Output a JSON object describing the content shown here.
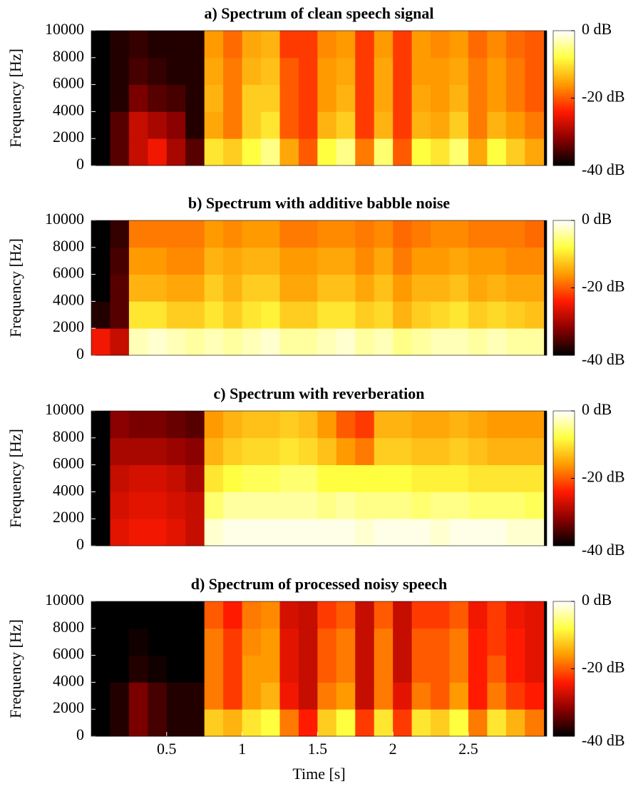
{
  "chart_data": [
    {
      "type": "heatmap",
      "title": "a) Spectrum of clean speech signal",
      "ylabel": "Frequency [Hz]",
      "x": [
        0,
        0.125,
        0.25,
        0.375,
        0.5,
        0.625,
        0.75,
        0.875,
        1,
        1.125,
        1.25,
        1.375,
        1.5,
        1.625,
        1.75,
        1.875,
        2,
        2.125,
        2.25,
        2.375,
        2.5,
        2.625,
        2.75,
        2.875,
        3
      ],
      "y": [
        0,
        2000,
        4000,
        6000,
        8000,
        10000
      ],
      "values": [
        [
          -40,
          -35,
          -28,
          -25,
          -30,
          -35,
          -10,
          -12,
          -8,
          -5,
          -15,
          -20,
          -8,
          -5,
          -18,
          -6,
          -20,
          -8,
          -10,
          -6,
          -15,
          -8,
          -12,
          -15
        ],
        [
          -40,
          -35,
          -28,
          -30,
          -32,
          -38,
          -15,
          -18,
          -12,
          -10,
          -20,
          -22,
          -14,
          -12,
          -22,
          -14,
          -22,
          -14,
          -15,
          -12,
          -18,
          -14,
          -16,
          -18
        ],
        [
          -40,
          -38,
          -33,
          -35,
          -36,
          -38,
          -14,
          -18,
          -12,
          -12,
          -20,
          -22,
          -16,
          -14,
          -22,
          -15,
          -22,
          -15,
          -16,
          -14,
          -18,
          -16,
          -18,
          -20
        ],
        [
          -40,
          -38,
          -36,
          -37,
          -38,
          -38,
          -15,
          -18,
          -14,
          -13,
          -20,
          -22,
          -16,
          -15,
          -22,
          -15,
          -22,
          -16,
          -16,
          -15,
          -18,
          -16,
          -18,
          -20
        ],
        [
          -40,
          -38,
          -37,
          -38,
          -38,
          -38,
          -16,
          -19,
          -15,
          -14,
          -22,
          -22,
          -17,
          -16,
          -22,
          -16,
          -22,
          -16,
          -17,
          -16,
          -19,
          -17,
          -19,
          -20
        ]
      ],
      "xlim": [
        0,
        3.02
      ],
      "ylim": [
        0,
        10000
      ],
      "yticks": [
        0,
        2000,
        4000,
        6000,
        8000,
        10000
      ],
      "colorbar": {
        "lim": [
          -40,
          0
        ],
        "ticks": [
          {
            "value": 0,
            "label": "0 dB"
          },
          {
            "value": -20,
            "label": "-20 dB"
          },
          {
            "value": -40,
            "label": "-40 dB"
          }
        ],
        "colors": [
          "#000000",
          "#8b0000",
          "#ff1a00",
          "#ff9a00",
          "#ffff40",
          "#ffffff"
        ]
      }
    },
    {
      "type": "heatmap",
      "title": "b) Spectrum with additive babble noise",
      "ylabel": "Frequency [Hz]",
      "x": [
        0,
        0.125,
        0.25,
        0.375,
        0.5,
        0.625,
        0.75,
        0.875,
        1,
        1.125,
        1.25,
        1.375,
        1.5,
        1.625,
        1.75,
        1.875,
        2,
        2.125,
        2.25,
        2.375,
        2.5,
        2.625,
        2.75,
        2.875,
        3
      ],
      "y": [
        0,
        2000,
        4000,
        6000,
        8000,
        10000
      ],
      "values": [
        [
          -25,
          -28,
          -3,
          -2,
          -3,
          -4,
          -3,
          -4,
          -3,
          -2,
          -4,
          -4,
          -3,
          -2,
          -4,
          -3,
          -5,
          -4,
          -3,
          -3,
          -4,
          -3,
          -4,
          -4
        ],
        [
          -38,
          -35,
          -10,
          -10,
          -12,
          -12,
          -10,
          -12,
          -10,
          -9,
          -12,
          -12,
          -10,
          -10,
          -12,
          -11,
          -14,
          -12,
          -11,
          -10,
          -12,
          -11,
          -12,
          -13
        ],
        [
          -40,
          -35,
          -14,
          -14,
          -15,
          -15,
          -12,
          -14,
          -12,
          -12,
          -15,
          -15,
          -13,
          -13,
          -15,
          -13,
          -16,
          -14,
          -14,
          -13,
          -15,
          -14,
          -15,
          -15
        ],
        [
          -40,
          -36,
          -16,
          -16,
          -17,
          -17,
          -14,
          -15,
          -14,
          -14,
          -16,
          -16,
          -15,
          -15,
          -17,
          -15,
          -18,
          -16,
          -16,
          -15,
          -16,
          -16,
          -17,
          -17
        ],
        [
          -40,
          -37,
          -18,
          -18,
          -18,
          -18,
          -16,
          -17,
          -16,
          -16,
          -18,
          -18,
          -17,
          -17,
          -18,
          -17,
          -19,
          -18,
          -17,
          -17,
          -18,
          -18,
          -18,
          -19
        ]
      ],
      "xlim": [
        0,
        3.02
      ],
      "ylim": [
        0,
        10000
      ],
      "yticks": [
        0,
        2000,
        4000,
        6000,
        8000,
        10000
      ],
      "colorbar": {
        "lim": [
          -40,
          0
        ],
        "ticks": [
          {
            "value": 0,
            "label": "0 dB"
          },
          {
            "value": -20,
            "label": "-20 dB"
          },
          {
            "value": -40,
            "label": "-40 dB"
          }
        ],
        "colors": [
          "#000000",
          "#8b0000",
          "#ff1a00",
          "#ff9a00",
          "#ffff40",
          "#ffffff"
        ]
      }
    },
    {
      "type": "heatmap",
      "title": "c) Spectrum with reverberation",
      "ylabel": "Frequency [Hz]",
      "x": [
        0,
        0.125,
        0.25,
        0.375,
        0.5,
        0.625,
        0.75,
        0.875,
        1,
        1.125,
        1.25,
        1.375,
        1.5,
        1.625,
        1.75,
        1.875,
        2,
        2.125,
        2.25,
        2.375,
        2.5,
        2.625,
        2.75,
        2.875,
        3
      ],
      "y": [
        0,
        2000,
        4000,
        6000,
        8000,
        10000
      ],
      "values": [
        [
          -40,
          -26,
          -25,
          -25,
          -26,
          -28,
          -2,
          -1,
          -1,
          -1,
          -1,
          -1,
          -1,
          -1,
          -2,
          -1,
          -1,
          -1,
          -2,
          -1,
          -1,
          -1,
          -2,
          -2
        ],
        [
          -40,
          -27,
          -26,
          -26,
          -27,
          -28,
          -6,
          -4,
          -4,
          -4,
          -4,
          -4,
          -5,
          -4,
          -5,
          -5,
          -5,
          -6,
          -5,
          -5,
          -6,
          -6,
          -6,
          -7
        ],
        [
          -40,
          -28,
          -27,
          -27,
          -28,
          -30,
          -10,
          -8,
          -7,
          -7,
          -6,
          -6,
          -8,
          -8,
          -8,
          -8,
          -8,
          -9,
          -9,
          -9,
          -10,
          -10,
          -10,
          -10
        ],
        [
          -40,
          -30,
          -30,
          -30,
          -31,
          -32,
          -14,
          -12,
          -11,
          -11,
          -10,
          -11,
          -13,
          -16,
          -18,
          -12,
          -12,
          -13,
          -13,
          -12,
          -13,
          -14,
          -14,
          -14
        ],
        [
          -40,
          -32,
          -33,
          -33,
          -34,
          -35,
          -16,
          -14,
          -13,
          -13,
          -12,
          -13,
          -16,
          -20,
          -22,
          -14,
          -14,
          -15,
          -15,
          -14,
          -15,
          -16,
          -16,
          -16
        ]
      ],
      "xlim": [
        0,
        3.02
      ],
      "ylim": [
        0,
        10000
      ],
      "yticks": [
        0,
        2000,
        4000,
        6000,
        8000,
        10000
      ],
      "colorbar": {
        "lim": [
          -40,
          0
        ],
        "ticks": [
          {
            "value": 0,
            "label": "0 dB"
          },
          {
            "value": -20,
            "label": "-20 dB"
          },
          {
            "value": -40,
            "label": "-40 dB"
          }
        ],
        "colors": [
          "#000000",
          "#8b0000",
          "#ff1a00",
          "#ff9a00",
          "#ffff40",
          "#ffffff"
        ]
      }
    },
    {
      "type": "heatmap",
      "title": "d) Spectrum of processed noisy speech",
      "ylabel": "Frequency [Hz]",
      "xlabel": "Time [s]",
      "x": [
        0,
        0.125,
        0.25,
        0.375,
        0.5,
        0.625,
        0.75,
        0.875,
        1,
        1.125,
        1.25,
        1.375,
        1.5,
        1.625,
        1.75,
        1.875,
        2,
        2.125,
        2.25,
        2.375,
        2.5,
        2.625,
        2.75,
        2.875,
        3
      ],
      "y": [
        0,
        2000,
        4000,
        6000,
        8000,
        10000
      ],
      "values": [
        [
          -40,
          -38,
          -33,
          -36,
          -38,
          -38,
          -12,
          -14,
          -10,
          -8,
          -18,
          -24,
          -12,
          -8,
          -22,
          -10,
          -22,
          -10,
          -12,
          -8,
          -18,
          -10,
          -14,
          -18
        ],
        [
          -40,
          -38,
          -33,
          -36,
          -38,
          -38,
          -18,
          -22,
          -16,
          -14,
          -25,
          -28,
          -18,
          -16,
          -28,
          -18,
          -26,
          -18,
          -20,
          -16,
          -24,
          -18,
          -22,
          -24
        ],
        [
          -40,
          -40,
          -38,
          -39,
          -40,
          -40,
          -18,
          -22,
          -16,
          -16,
          -26,
          -28,
          -20,
          -18,
          -28,
          -18,
          -28,
          -20,
          -20,
          -18,
          -24,
          -20,
          -24,
          -26
        ],
        [
          -40,
          -40,
          -39,
          -40,
          -40,
          -40,
          -18,
          -22,
          -17,
          -16,
          -26,
          -28,
          -20,
          -18,
          -28,
          -18,
          -28,
          -20,
          -20,
          -18,
          -24,
          -22,
          -24,
          -26
        ],
        [
          -40,
          -40,
          -40,
          -40,
          -40,
          -40,
          -20,
          -24,
          -18,
          -17,
          -27,
          -28,
          -22,
          -20,
          -28,
          -20,
          -28,
          -22,
          -22,
          -20,
          -25,
          -22,
          -25,
          -26
        ]
      ],
      "xlim": [
        0,
        3.02
      ],
      "ylim": [
        0,
        10000
      ],
      "yticks": [
        0,
        2000,
        4000,
        6000,
        8000,
        10000
      ],
      "xticks": [
        0.5,
        1,
        1.5,
        2,
        2.5
      ],
      "colorbar": {
        "lim": [
          -40,
          0
        ],
        "ticks": [
          {
            "value": 0,
            "label": "0 dB"
          },
          {
            "value": -20,
            "label": "-20 dB"
          },
          {
            "value": -40,
            "label": "-40 dB"
          }
        ],
        "colors": [
          "#000000",
          "#8b0000",
          "#ff1a00",
          "#ff9a00",
          "#ffff40",
          "#ffffff"
        ]
      }
    }
  ]
}
